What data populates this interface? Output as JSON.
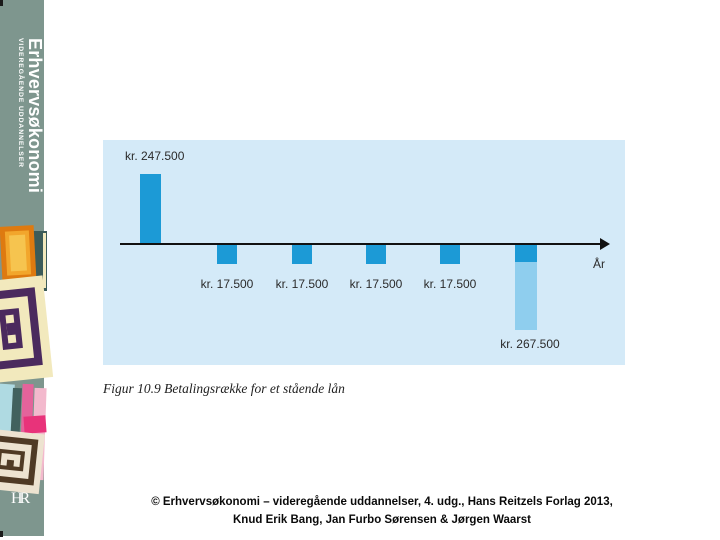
{
  "sidebar": {
    "title": "Erhvervsøkonomi",
    "subtitle": "VIDEREGÅENDE UDDANNELSER",
    "publisher_logo": "HR",
    "band_color": "#7E968E"
  },
  "chart": {
    "panel_bg": "#D4EAF8",
    "bar_color": "#1C9AD6",
    "final_bar_extension_color": "#8FCEEE",
    "axis_label": "År",
    "value_labels": [
      "kr. 247.500",
      "kr. 17.500",
      "kr. 17.500",
      "kr. 17.500",
      "kr. 17.500",
      "kr. 267.500"
    ]
  },
  "chart_data": {
    "type": "bar",
    "title": "Figur 10.9 Betalingsrække for et stående lån",
    "xlabel": "År",
    "x": [
      0,
      1,
      2,
      3,
      4,
      5
    ],
    "values": [
      247500,
      -17500,
      -17500,
      -17500,
      -17500,
      -267500
    ],
    "value_labels": [
      "kr. 247.500",
      "kr. 17.500",
      "kr. 17.500",
      "kr. 17.500",
      "kr. 17.500",
      "kr. 267.500"
    ],
    "layout": {
      "orientation": "cash-flow timeline, positive bar above horizontal arrow axis, negative bars below",
      "grid": false,
      "legend": false,
      "bar_color": "#1C9AD6",
      "final_bar_extension_color": "#8FCEEE",
      "panel_bg": "#D4EAF8"
    }
  },
  "caption": "Figur 10.9 Betalingsrække for et stående lån",
  "footer": {
    "line1": "© Erhvervsøkonomi – videregående uddannelser, 4. udg., Hans Reitzels Forlag 2013,",
    "line2": "Knud Erik Bang, Jan Furbo Sørensen & Jørgen Waarst"
  }
}
